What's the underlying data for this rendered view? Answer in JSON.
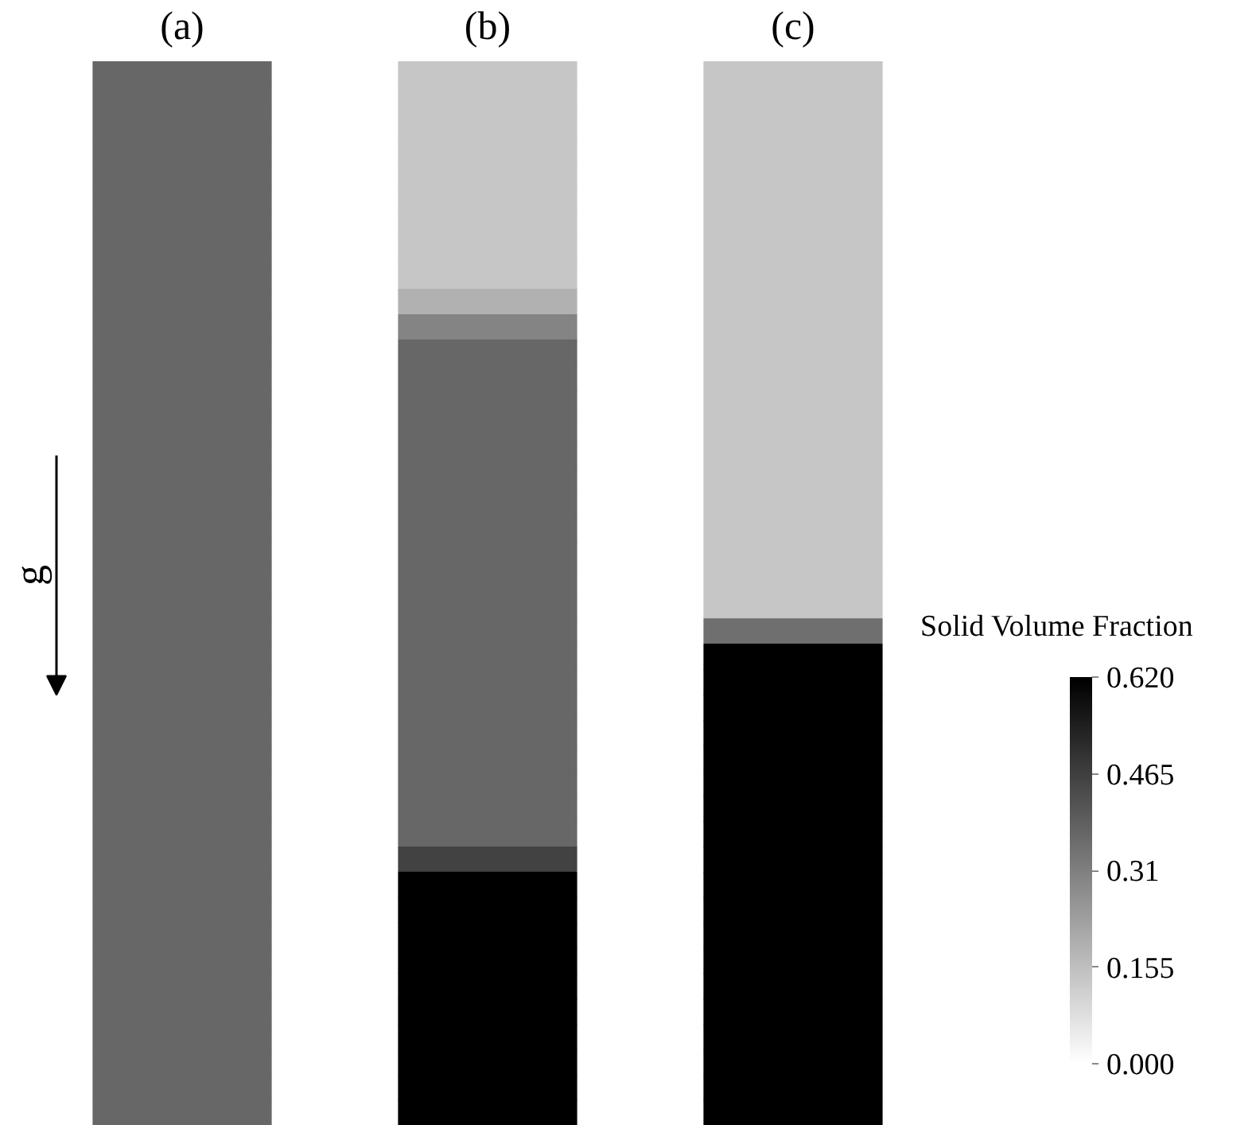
{
  "chart_data": {
    "type": "heatmap",
    "annotations": [
      "g"
    ],
    "tick_labels": "x",
    "clabel": "Solid Volume Fraction",
    "clim": [
      0,
      0.62
    ],
    "cticks": [
      {
        "value": 0,
        "label": "0.000"
      },
      0.155,
      0.31,
      0.465,
      {
        "value": 0.62,
        "label": "0.620"
      }
    ],
    "categories": [
      "(a)",
      "(b)",
      "(c)"
    ],
    "y_categories": [
      null,
      null,
      null,
      null,
      null,
      null,
      null,
      null,
      null,
      null,
      null,
      null,
      null,
      null,
      null,
      null,
      null,
      null,
      null,
      null,
      null,
      null,
      null,
      null,
      null,
      null,
      null,
      null,
      null,
      null,
      null,
      null,
      null,
      null,
      null,
      null,
      null,
      null,
      null,
      null,
      null,
      null
    ],
    "cells": [
      [
        0.37,
        0.14,
        0.14
      ],
      [
        0.37,
        0.14,
        0.14
      ],
      [
        0.37,
        0.14,
        0.14
      ],
      [
        0.37,
        0.14,
        0.14
      ],
      [
        0.37,
        0.14,
        0.14
      ],
      [
        0.37,
        0.14,
        0.14
      ],
      [
        0.37,
        0.14,
        0.14
      ],
      [
        0.37,
        0.14,
        0.14
      ],
      [
        0.37,
        0.14,
        0.14
      ],
      [
        0.37,
        0.19,
        0.14
      ],
      [
        0.37,
        0.3,
        0.14
      ],
      [
        0.37,
        0.37,
        0.14
      ],
      [
        0.37,
        0.37,
        0.14
      ],
      [
        0.37,
        0.37,
        0.14
      ],
      [
        0.37,
        0.37,
        0.14
      ],
      [
        0.37,
        0.37,
        0.14
      ],
      [
        0.37,
        0.37,
        0.14
      ],
      [
        0.37,
        0.37,
        0.14
      ],
      [
        0.37,
        0.37,
        0.14
      ],
      [
        0.37,
        0.37,
        0.14
      ],
      [
        0.37,
        0.37,
        0.14
      ],
      [
        0.37,
        0.37,
        0.14
      ],
      [
        0.37,
        0.37,
        0.35
      ],
      [
        0.37,
        0.37,
        0.62
      ],
      [
        0.37,
        0.37,
        0.62
      ],
      [
        0.37,
        0.37,
        0.62
      ],
      [
        0.37,
        0.37,
        0.62
      ],
      [
        0.37,
        0.37,
        0.62
      ],
      [
        0.37,
        0.37,
        0.62
      ],
      [
        0.37,
        0.37,
        0.62
      ],
      [
        0.37,
        0.37,
        0.62
      ],
      [
        0.37,
        0.46,
        0.62
      ],
      [
        0.37,
        0.62,
        0.62
      ],
      [
        0.37,
        0.62,
        0.62
      ],
      [
        0.37,
        0.62,
        0.62
      ],
      [
        0.37,
        0.62,
        0.62
      ],
      [
        0.37,
        0.62,
        0.62
      ],
      [
        0.37,
        0.62,
        0.62
      ],
      [
        0.37,
        0.62,
        0.62
      ],
      [
        0.37,
        0.62,
        0.62
      ],
      [
        0.37,
        0.62,
        0.62
      ],
      [
        0.37,
        0.62,
        0.62
      ]
    ]
  }
}
